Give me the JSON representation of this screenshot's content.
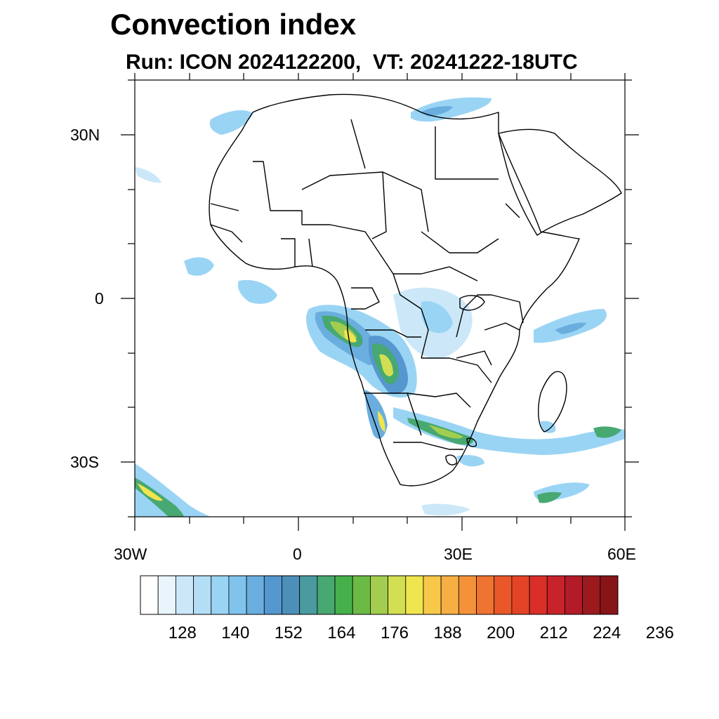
{
  "header": {
    "title": "Convection index",
    "subtitle": "Run: ICON 2024122200,  VT: 20241222-18UTC"
  },
  "axes": {
    "lat_ticks": [
      {
        "label": "30N",
        "lat": 30
      },
      {
        "label": "0",
        "lat": 0
      },
      {
        "label": "30S",
        "lat": -30
      }
    ],
    "lon_ticks": [
      {
        "label": "30W",
        "lon": -30
      },
      {
        "label": "0",
        "lon": 0
      },
      {
        "label": "30E",
        "lon": 30
      },
      {
        "label": "60E",
        "lon": 60
      }
    ],
    "lon_range": [
      -30,
      60
    ],
    "lat_range": [
      -40,
      40
    ]
  },
  "colorbar": {
    "labels": [
      "128",
      "140",
      "152",
      "164",
      "176",
      "188",
      "200",
      "212",
      "224",
      "236"
    ],
    "colors": [
      "#ffffff",
      "#e8f5fc",
      "#cce8f8",
      "#b3def6",
      "#9ad4f4",
      "#80c4ee",
      "#6aaedf",
      "#5597cf",
      "#4c8fb9",
      "#4a9aa0",
      "#47a872",
      "#46b04a",
      "#6cba46",
      "#a3cd4e",
      "#d2df52",
      "#f0e54e",
      "#f8c84a",
      "#f7ae44",
      "#f4923a",
      "#ef7331",
      "#ea582a",
      "#e34327",
      "#da2e29",
      "#c8222b",
      "#b21b27",
      "#9b1a1e",
      "#871518"
    ]
  },
  "chart_data": {
    "type": "heatmap",
    "title": "Convection index",
    "subtitle": "Run: ICON 2024122200,  VT: 20241222-18UTC",
    "x_ticks": [
      "30W",
      "0",
      "30E",
      "60E"
    ],
    "y_ticks": [
      "30N",
      "0",
      "30S"
    ],
    "colorbar_ticks": [
      128,
      140,
      152,
      164,
      176,
      188,
      200,
      212,
      224,
      236
    ]
  }
}
